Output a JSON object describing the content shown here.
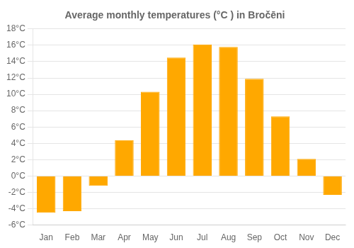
{
  "chart_data": {
    "type": "bar",
    "title": "Average monthly temperatures (°C ) in Bročēni",
    "categories": [
      "Jan",
      "Feb",
      "Mar",
      "Apr",
      "May",
      "Jun",
      "Jul",
      "Aug",
      "Sep",
      "Oct",
      "Nov",
      "Dec"
    ],
    "values": [
      -4.5,
      -4.3,
      -1.2,
      4.4,
      10.3,
      14.5,
      16.1,
      15.8,
      11.9,
      7.3,
      2.1,
      -2.3
    ],
    "color": "#FFA800",
    "ylim": [
      -6,
      18
    ],
    "yticks": [
      {
        "value": -6,
        "label": "-6°C"
      },
      {
        "value": -4,
        "label": "-4°C"
      },
      {
        "value": -2,
        "label": "-2°C"
      },
      {
        "value": 0,
        "label": "0°C"
      },
      {
        "value": 2,
        "label": "2°C"
      },
      {
        "value": 4,
        "label": "4°C"
      },
      {
        "value": 6,
        "label": "6°C"
      },
      {
        "value": 8,
        "label": "8°C"
      },
      {
        "value": 10,
        "label": "10°C"
      },
      {
        "value": 12,
        "label": "12°C"
      },
      {
        "value": 14,
        "label": "14°C"
      },
      {
        "value": 16,
        "label": "16°C"
      },
      {
        "value": 18,
        "label": "18°C"
      }
    ],
    "grid": true
  }
}
